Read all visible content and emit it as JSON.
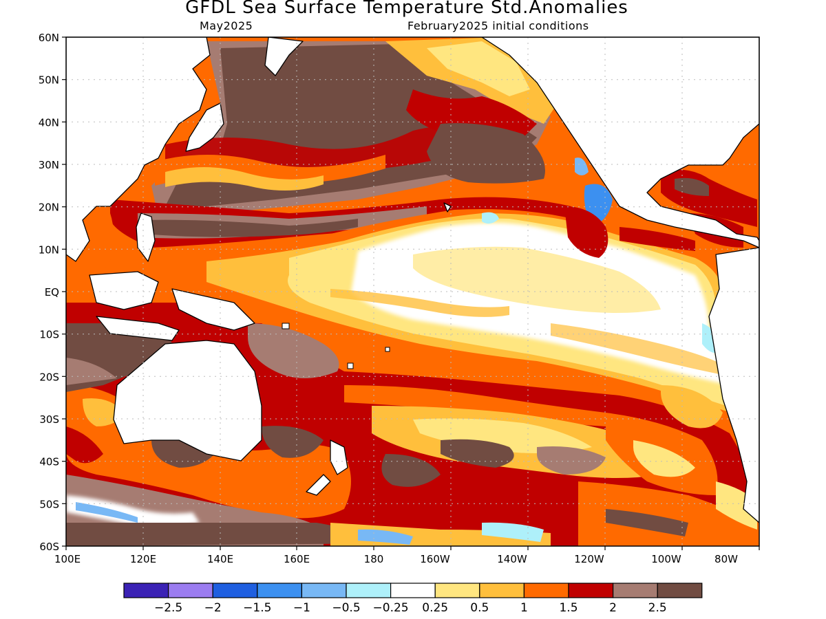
{
  "title": "GFDL Sea Surface Temperature Std.Anomalies",
  "valid_month": "May2025",
  "initial_conditions": "February2025 initial conditions",
  "lat_labels": [
    "60N",
    "50N",
    "40N",
    "30N",
    "20N",
    "10N",
    "EQ",
    "10S",
    "20S",
    "30S",
    "40S",
    "50S",
    "60S"
  ],
  "lon_labels": [
    "100E",
    "120E",
    "140E",
    "160E",
    "180",
    "160W",
    "140W",
    "120W",
    "100W",
    "80W"
  ],
  "colorbar": {
    "colors": [
      "#3b22b5",
      "#9b7cf0",
      "#1f5fe0",
      "#3c90f0",
      "#78b8f5",
      "#aef0fa",
      "#ffffff",
      "#ffe680",
      "#ffbf3c",
      "#ff6a00",
      "#c00000",
      "#a67c72",
      "#714c42"
    ],
    "labels": [
      "-2.5",
      "-2",
      "-1.5",
      "-1",
      "-0.5",
      "-0.25",
      "0.25",
      "0.5",
      "1",
      "1.5",
      "2",
      "2.5"
    ]
  }
}
